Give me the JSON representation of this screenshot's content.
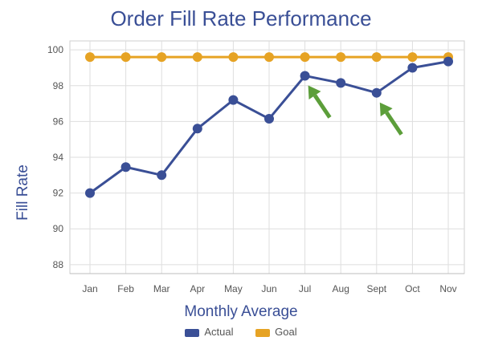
{
  "chart_data": {
    "type": "line",
    "title": "Order Fill Rate Performance",
    "xlabel": "Monthly Average",
    "ylabel": "Fill Rate",
    "categories": [
      "Jan",
      "Feb",
      "Mar",
      "Apr",
      "May",
      "Jun",
      "Jul",
      "Aug",
      "Sept",
      "Oct",
      "Nov"
    ],
    "ylim": [
      87.5,
      100.5
    ],
    "yticks": [
      88,
      90,
      92,
      94,
      96,
      98,
      100
    ],
    "grid": true,
    "legend_position": "bottom",
    "series": [
      {
        "name": "Actual",
        "color": "#3a4f96",
        "values": [
          92.0,
          93.45,
          93.0,
          95.6,
          97.2,
          96.15,
          98.55,
          98.15,
          97.6,
          99.0,
          99.35
        ]
      },
      {
        "name": "Goal",
        "color": "#e6a324",
        "values": [
          99.6,
          99.6,
          99.6,
          99.6,
          99.6,
          99.6,
          99.6,
          99.6,
          99.6,
          99.6,
          99.6
        ]
      }
    ],
    "annotations": [
      {
        "type": "arrow",
        "color": "#5c9e3a",
        "target_category": "Jul",
        "target_value": 98.55
      },
      {
        "type": "arrow",
        "color": "#5c9e3a",
        "target_category": "Sept",
        "target_value": 97.6
      }
    ]
  }
}
